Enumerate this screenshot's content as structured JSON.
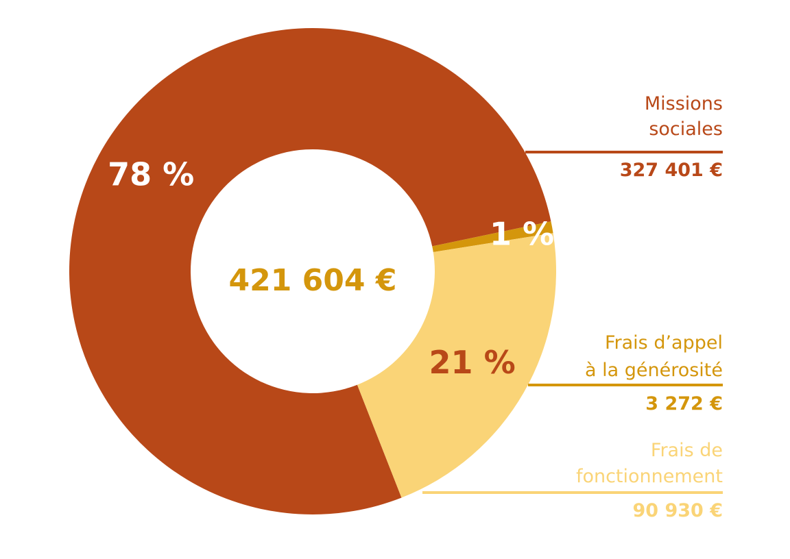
{
  "chart_data": {
    "type": "pie",
    "variant": "donut",
    "total_label": "421 604 €",
    "total_value": 421604,
    "colors": {
      "total_text": "#D4960C"
    },
    "slices": [
      {
        "label_lines": [
          "Missions",
          "sociales"
        ],
        "amount_label": "327 401 €",
        "value": 327401,
        "percent_label": "78 %",
        "color": "#B84818",
        "percent_color": "#FFFFFF",
        "label_color": "#B84818"
      },
      {
        "label_lines": [
          "Frais d’appel",
          "à la générosité"
        ],
        "amount_label": "3 272 €",
        "value": 3272,
        "percent_label": "1 %",
        "color": "#D4960C",
        "percent_color": "#FFFFFF",
        "label_color": "#D4960C"
      },
      {
        "label_lines": [
          "Frais de",
          "fonctionnement"
        ],
        "amount_label": "90 930 €",
        "value": 90930,
        "percent_label": "21 %",
        "color": "#FAD477",
        "percent_color": "#B84818",
        "label_color": "#FAD477"
      }
    ]
  }
}
